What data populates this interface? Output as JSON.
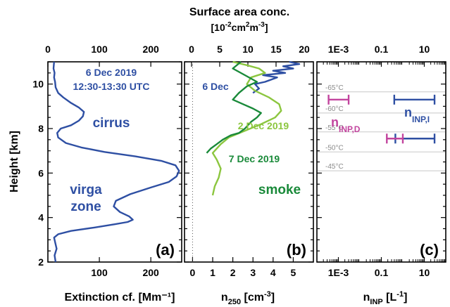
{
  "top_title": "Surface area conc.",
  "top_unit": {
    "base": "[10",
    "exp1": "-2",
    "mid": "cm",
    "exp2": "2",
    "tail": "m",
    "exp3": "-3",
    "close": "]"
  },
  "colors": {
    "blue": "#2e4fa3",
    "dark_green": "#1a8a3a",
    "light_green": "#8cc63f",
    "magenta": "#c2449e",
    "gray_line": "#c8c8c8",
    "temp_text": "#8a8a8a"
  },
  "chart_data": [
    {
      "type": "line",
      "panel_label": "(a)",
      "xlabel": "Extinction cf. [Mm⁻¹]",
      "ylabel": "Height [km]",
      "xlim": [
        0,
        260
      ],
      "ylim": [
        2,
        11
      ],
      "x_ticks": [
        "100",
        "200"
      ],
      "x_tick_values": [
        100,
        200
      ],
      "top_ticks": [
        "0",
        "100",
        "200"
      ],
      "top_tick_values": [
        0,
        100,
        200
      ],
      "y_ticks": [
        "2",
        "4",
        "6",
        "8",
        "10"
      ],
      "y_tick_values": [
        2,
        4,
        6,
        8,
        10
      ],
      "annotations": {
        "date": "6 Dec 2019",
        "time": "12:30-13:30 UTC",
        "cirrus": "cirrus",
        "virga1": "virga",
        "virga2": "zone"
      },
      "series": [
        {
          "color": "#2e4fa3",
          "points": [
            [
              15,
              2.0
            ],
            [
              13,
              2.3
            ],
            [
              17,
              2.6
            ],
            [
              14,
              2.9
            ],
            [
              12,
              3.1
            ],
            [
              20,
              3.25
            ],
            [
              45,
              3.4
            ],
            [
              90,
              3.55
            ],
            [
              130,
              3.7
            ],
            [
              155,
              3.8
            ],
            [
              165,
              3.9
            ],
            [
              158,
              4.05
            ],
            [
              140,
              4.25
            ],
            [
              128,
              4.5
            ],
            [
              132,
              4.75
            ],
            [
              160,
              5.05
            ],
            [
              200,
              5.35
            ],
            [
              235,
              5.6
            ],
            [
              250,
              5.85
            ],
            [
              255,
              6.1
            ],
            [
              248,
              6.35
            ],
            [
              220,
              6.55
            ],
            [
              170,
              6.75
            ],
            [
              110,
              6.95
            ],
            [
              65,
              7.15
            ],
            [
              35,
              7.35
            ],
            [
              20,
              7.6
            ],
            [
              18,
              7.8
            ],
            [
              25,
              8.0
            ],
            [
              45,
              8.15
            ],
            [
              60,
              8.35
            ],
            [
              68,
              8.55
            ],
            [
              70,
              8.75
            ],
            [
              60,
              8.95
            ],
            [
              45,
              9.15
            ],
            [
              30,
              9.4
            ],
            [
              20,
              9.6
            ],
            [
              15,
              9.85
            ],
            [
              14,
              10.1
            ],
            [
              12,
              10.3
            ],
            [
              13,
              10.5
            ],
            [
              11,
              10.7
            ],
            [
              12,
              11.0
            ]
          ]
        }
      ]
    },
    {
      "type": "line",
      "panel_label": "(b)",
      "xlabel_base": "n",
      "xlabel_sub": "250",
      "xlabel_unit": " [cm",
      "xlabel_exp": "-3",
      "xlabel_close": "]",
      "xlim": [
        -0.4,
        6
      ],
      "ylim": [
        2,
        11
      ],
      "x_ticks": [
        "0",
        "1",
        "2",
        "3",
        "4",
        "5"
      ],
      "x_tick_values": [
        0,
        1,
        2,
        3,
        4,
        5
      ],
      "top_ticks": [
        "0",
        "5",
        "10",
        "15",
        "20"
      ],
      "top_tick_values": [
        0,
        5,
        10,
        15,
        20
      ],
      "annotations": {
        "dec6": "6 Dec",
        "dec2": "2 Dec 2019",
        "dec7": "7 Dec 2019",
        "smoke": "smoke"
      },
      "series": [
        {
          "name": "6 Dec",
          "color": "#2e4fa3",
          "points": [
            [
              3.0,
              9.6
            ],
            [
              3.3,
              9.8
            ],
            [
              3.1,
              10.0
            ],
            [
              3.6,
              10.1
            ],
            [
              4.2,
              10.3
            ],
            [
              3.5,
              10.4
            ],
            [
              4.6,
              10.5
            ],
            [
              4.0,
              10.6
            ],
            [
              5.0,
              10.7
            ],
            [
              4.5,
              10.8
            ],
            [
              5.3,
              10.9
            ],
            [
              4.8,
              11.0
            ]
          ]
        },
        {
          "name": "2 Dec 2019",
          "color": "#8cc63f",
          "points": [
            [
              1.0,
              5.0
            ],
            [
              1.1,
              5.4
            ],
            [
              1.3,
              5.8
            ],
            [
              1.4,
              6.2
            ],
            [
              1.2,
              6.6
            ],
            [
              1.0,
              6.9
            ],
            [
              1.4,
              7.3
            ],
            [
              1.8,
              7.6
            ],
            [
              2.6,
              7.9
            ],
            [
              3.4,
              8.2
            ],
            [
              4.1,
              8.5
            ],
            [
              4.4,
              8.8
            ],
            [
              4.3,
              9.1
            ],
            [
              3.8,
              9.4
            ],
            [
              3.1,
              9.7
            ],
            [
              2.7,
              10.0
            ],
            [
              2.9,
              10.3
            ],
            [
              3.6,
              10.5
            ],
            [
              3.3,
              10.7
            ],
            [
              2.7,
              10.85
            ],
            [
              2.0,
              11.0
            ]
          ]
        },
        {
          "name": "7 Dec 2019",
          "color": "#1a8a3a",
          "points": [
            [
              0.7,
              6.9
            ],
            [
              0.9,
              7.1
            ],
            [
              1.2,
              7.3
            ],
            [
              1.5,
              7.5
            ],
            [
              1.9,
              7.7
            ],
            [
              2.3,
              7.8
            ],
            [
              2.6,
              8.0
            ],
            [
              2.9,
              8.3
            ],
            [
              3.2,
              8.5
            ],
            [
              3.4,
              8.7
            ],
            [
              3.0,
              8.9
            ],
            [
              2.5,
              9.1
            ],
            [
              2.0,
              9.3
            ],
            [
              2.3,
              9.6
            ],
            [
              2.7,
              9.9
            ],
            [
              3.2,
              10.1
            ],
            [
              2.6,
              10.4
            ],
            [
              2.0,
              10.7
            ],
            [
              2.4,
              11.0
            ]
          ]
        }
      ]
    },
    {
      "type": "scatter",
      "panel_label": "(c)",
      "xlabel_base": "n",
      "xlabel_sub": "INP",
      "xlabel_unit": " [L",
      "xlabel_exp": "-1",
      "xlabel_close": "]",
      "xscale": "log",
      "xlim": [
        0.0001,
        100
      ],
      "ylim": [
        2,
        11
      ],
      "x_ticks": [
        "1E-3",
        "0.1",
        "10"
      ],
      "x_tick_values": [
        0.001,
        0.1,
        10
      ],
      "top_ticks": [
        "1E-3",
        "0.1",
        "10"
      ],
      "top_tick_values": [
        0.001,
        0.1,
        10
      ],
      "temperature_levels": [
        {
          "label": "-65°C",
          "height": 9.65
        },
        {
          "label": "-60°C",
          "height": 8.7
        },
        {
          "label": "-55°C",
          "height": 7.85
        },
        {
          "label": "-50°C",
          "height": 6.95
        },
        {
          "label": "-45°C",
          "height": 6.1
        }
      ],
      "labels": {
        "nd_base": "n",
        "nd_sub": "INP,D",
        "ni_base": "n",
        "ni_sub": "INP,I"
      },
      "ranges": [
        {
          "series": "n_INP,I",
          "color": "#2e4fa3",
          "height": 9.3,
          "low": 0.4,
          "high": 30
        },
        {
          "series": "n_INP,D",
          "color": "#c2449e",
          "height": 9.3,
          "low": 0.00035,
          "high": 0.003
        },
        {
          "series": "n_INP,I",
          "color": "#2e4fa3",
          "height": 7.55,
          "low": 0.45,
          "high": 30
        },
        {
          "series": "n_INP,D",
          "color": "#c2449e",
          "height": 7.55,
          "low": 0.18,
          "high": 1.0
        }
      ]
    }
  ]
}
